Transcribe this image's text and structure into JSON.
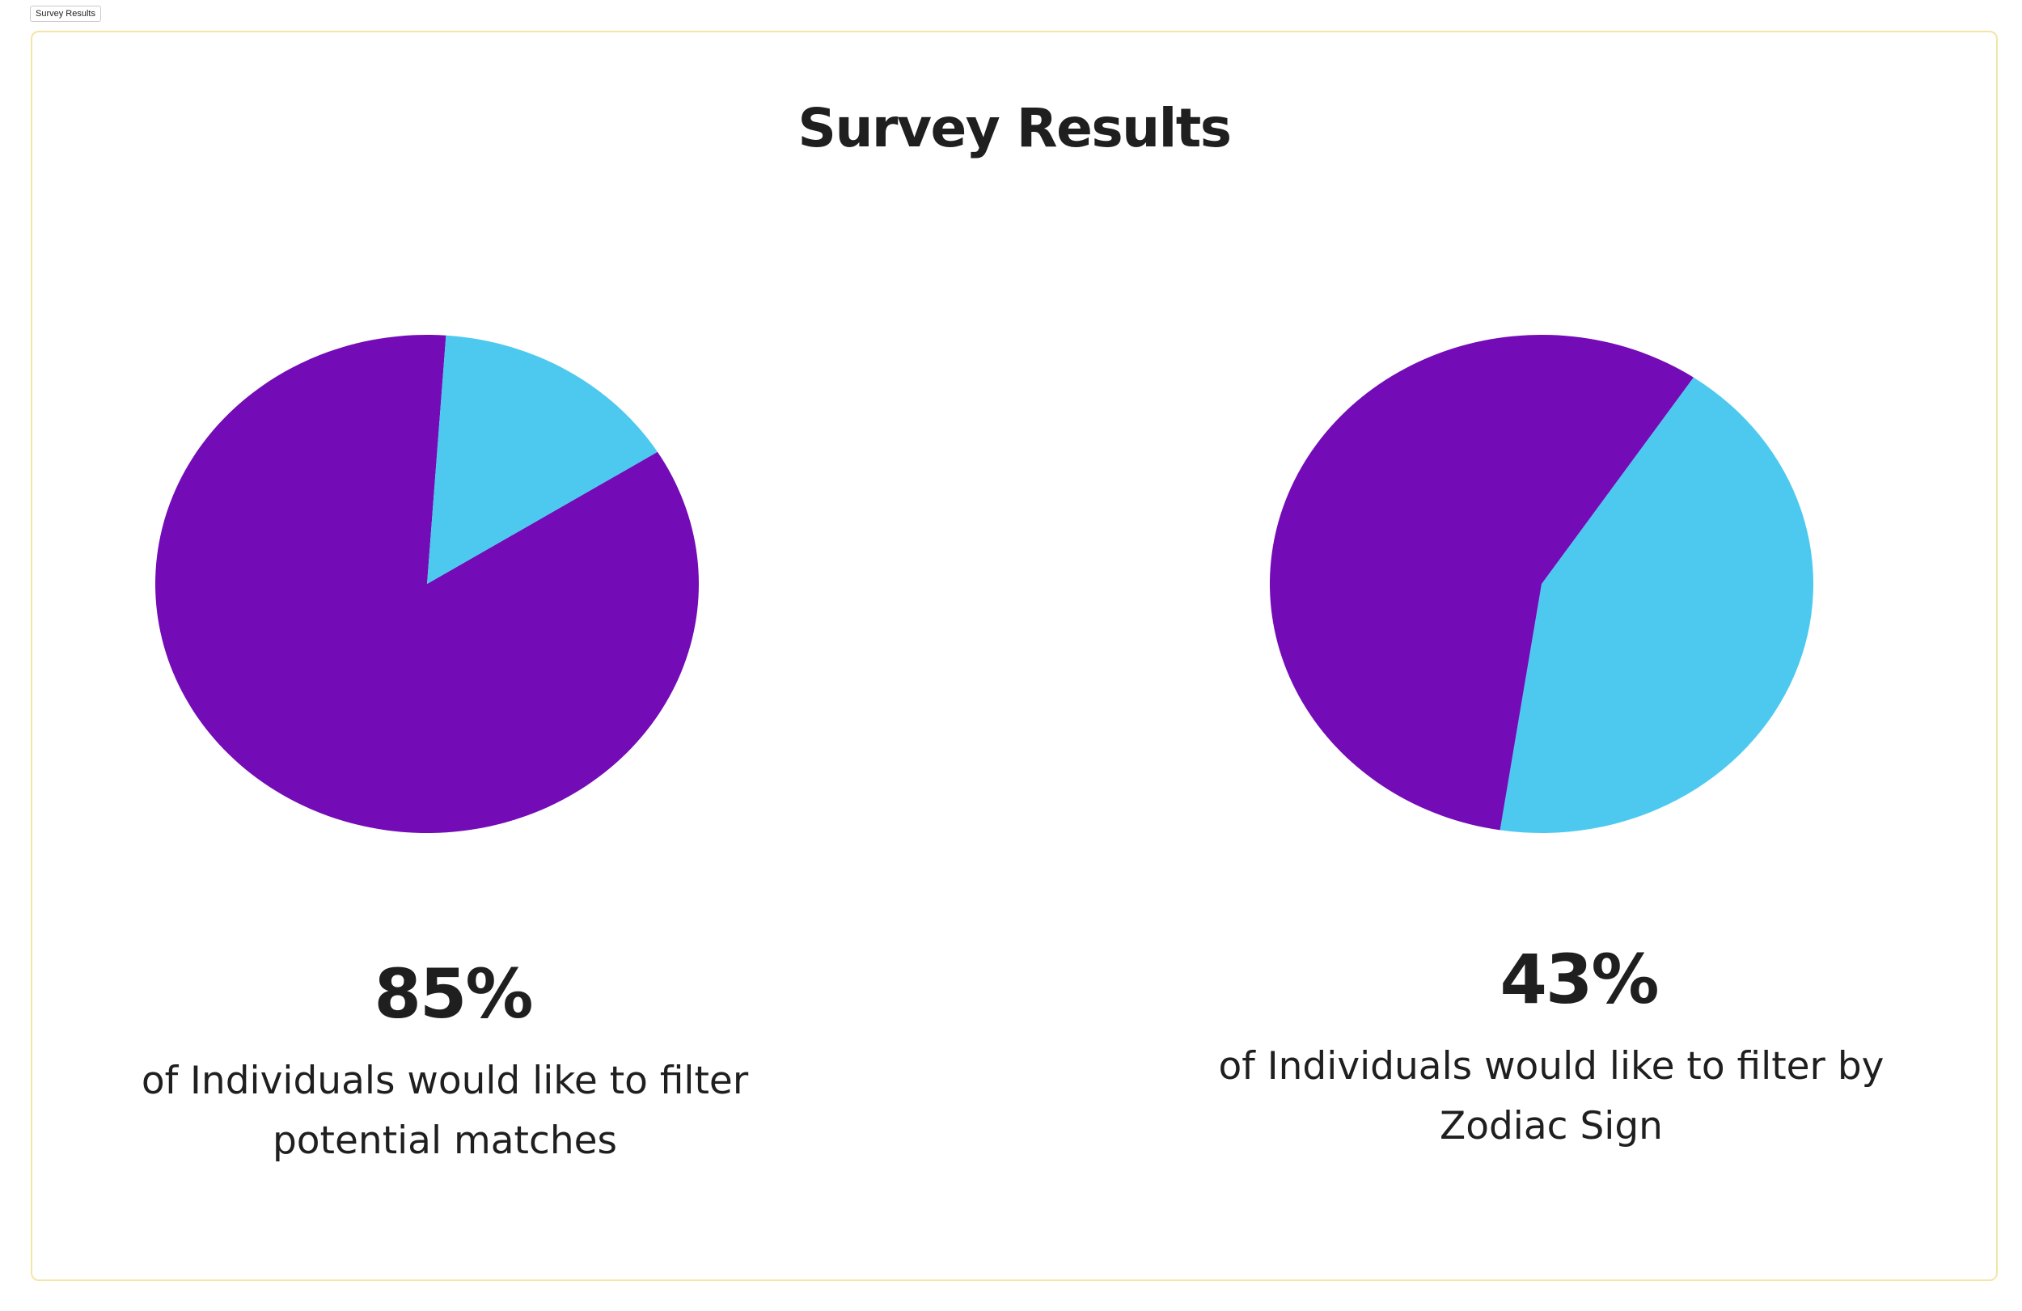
{
  "page": {
    "frame_label": "Survey Results",
    "title": "Survey Results"
  },
  "colors": {
    "primary_slice": "#730bb7",
    "secondary_slice": "#4dc9f0",
    "frame_border": "#f3e5a6",
    "text": "#1f1f1f"
  },
  "chart_data": [
    {
      "type": "pie",
      "values": [
        85,
        15
      ],
      "slice_colors": [
        "#730bb7",
        "#4dc9f0"
      ],
      "stat_label": "85%",
      "caption": "of Individuals would like to filter potential matches"
    },
    {
      "type": "pie",
      "values": [
        43,
        57
      ],
      "slice_colors": [
        "#4dc9f0",
        "#730bb7"
      ],
      "stat_label": "43%",
      "caption": "of Individuals would like to filter by Zodiac Sign"
    }
  ]
}
